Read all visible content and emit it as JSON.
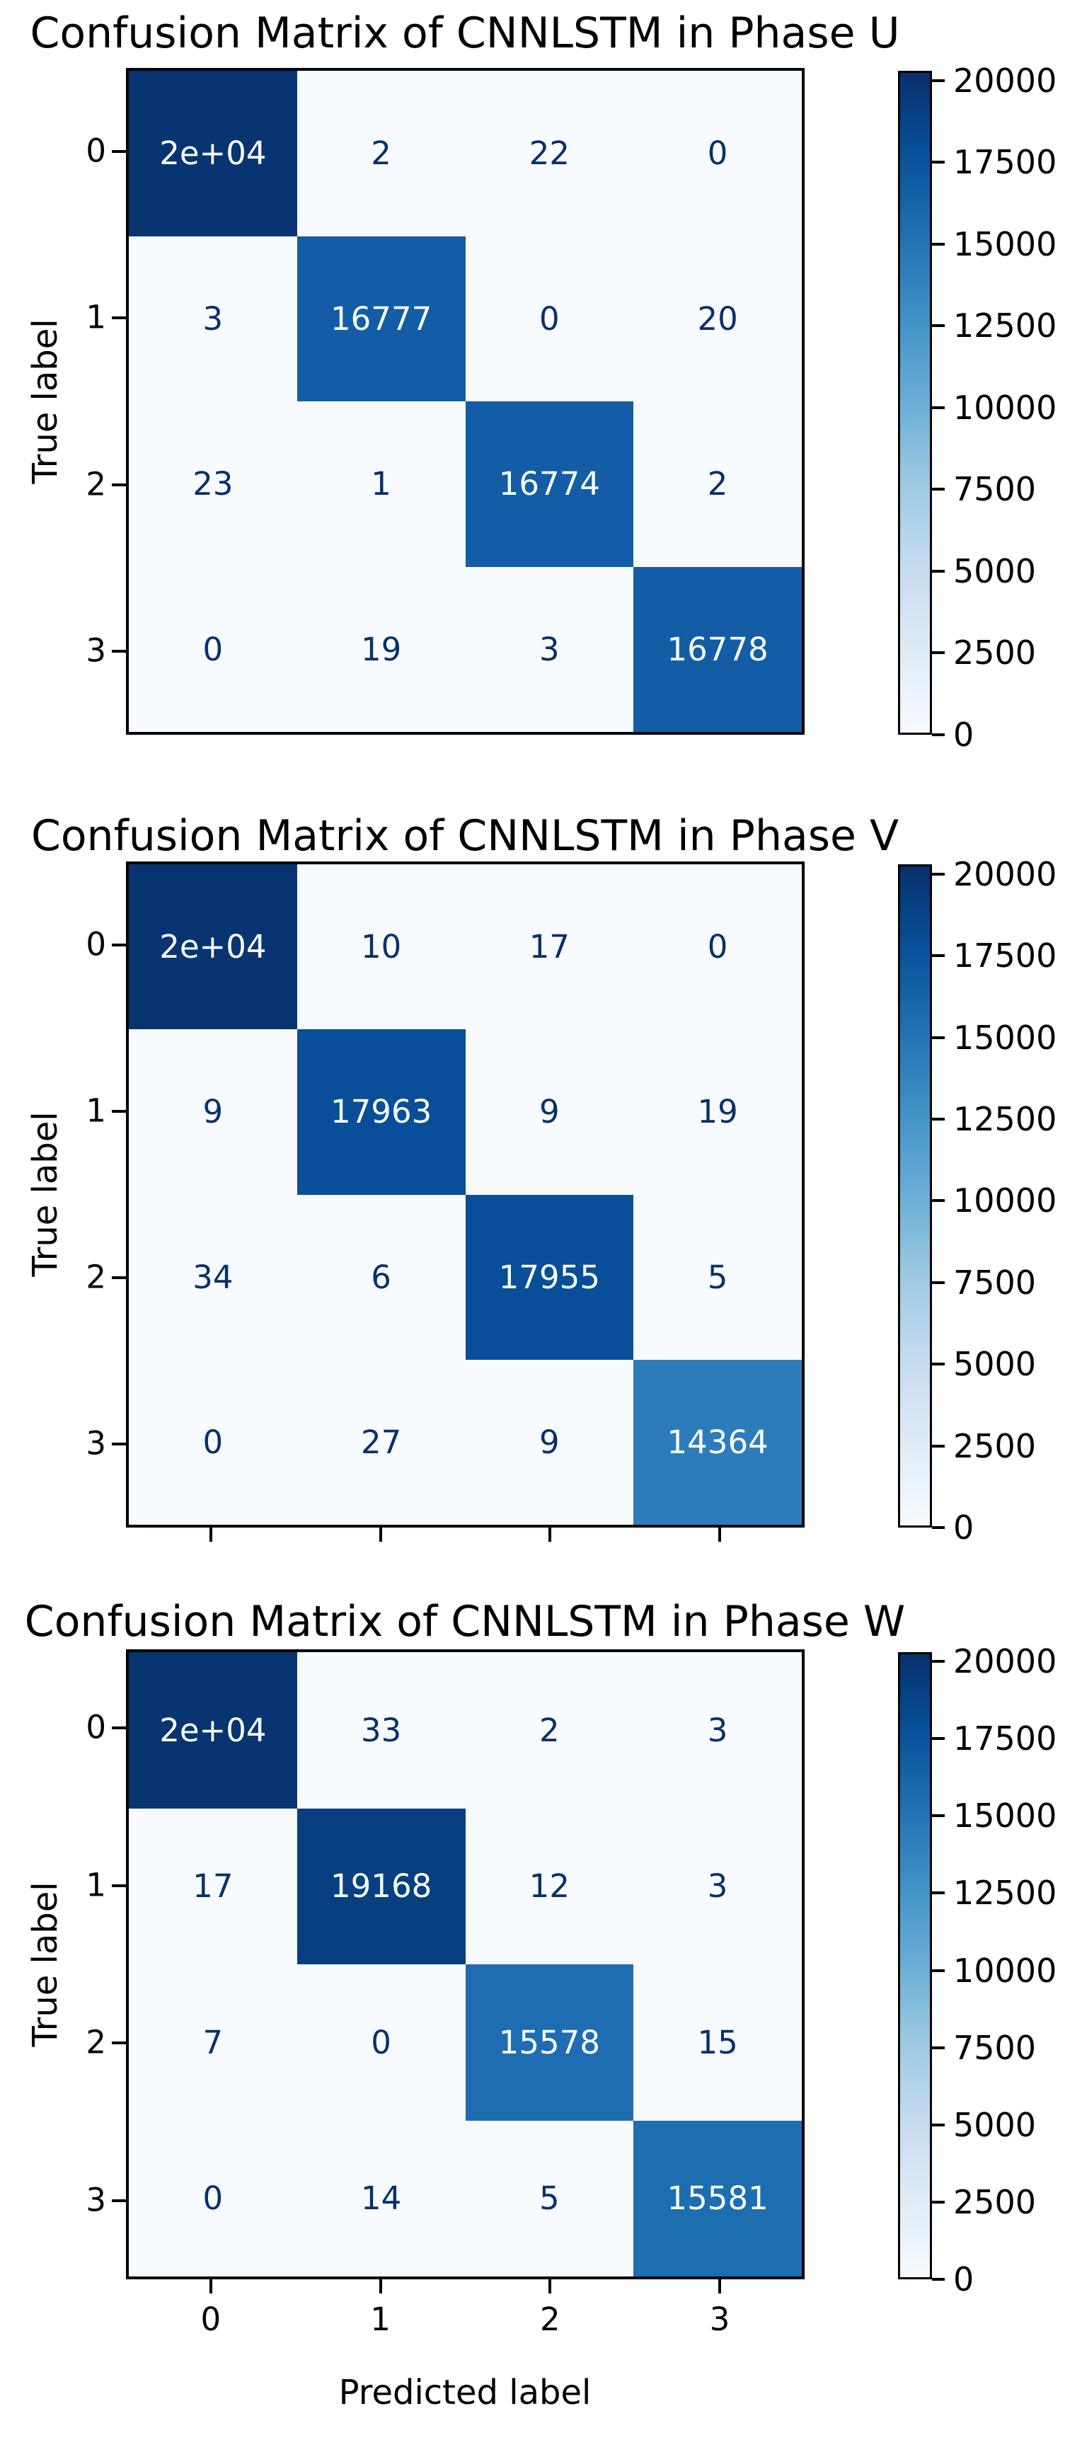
{
  "chart_data": [
    {
      "type": "heatmap",
      "title": "Confusion Matrix of CNNLSTM in Phase U",
      "ylabel": "True label",
      "row_labels": [
        "0",
        "1",
        "2",
        "3"
      ],
      "col_labels": [
        "0",
        "1",
        "2",
        "3"
      ],
      "cell_labels": [
        [
          "2e+04",
          "2",
          "22",
          "0"
        ],
        [
          "3",
          "16777",
          "0",
          "20"
        ],
        [
          "23",
          "1",
          "16774",
          "2"
        ],
        [
          "0",
          "19",
          "3",
          "16778"
        ]
      ],
      "values": [
        [
          20000,
          2,
          22,
          0
        ],
        [
          3,
          16777,
          0,
          20
        ],
        [
          23,
          1,
          16774,
          2
        ],
        [
          0,
          19,
          3,
          16778
        ]
      ]
    },
    {
      "type": "heatmap",
      "title": "Confusion Matrix of CNNLSTM in Phase V",
      "ylabel": "True label",
      "row_labels": [
        "0",
        "1",
        "2",
        "3"
      ],
      "col_labels": [
        "0",
        "1",
        "2",
        "3"
      ],
      "cell_labels": [
        [
          "2e+04",
          "10",
          "17",
          "0"
        ],
        [
          "9",
          "17963",
          "9",
          "19"
        ],
        [
          "34",
          "6",
          "17955",
          "5"
        ],
        [
          "0",
          "27",
          "9",
          "14364"
        ]
      ],
      "values": [
        [
          20000,
          10,
          17,
          0
        ],
        [
          9,
          17963,
          9,
          19
        ],
        [
          34,
          6,
          17955,
          5
        ],
        [
          0,
          27,
          9,
          14364
        ]
      ]
    },
    {
      "type": "heatmap",
      "title": "Confusion Matrix of CNNLSTM in Phase W",
      "ylabel": "True label",
      "xlabel": "Predicted label",
      "row_labels": [
        "0",
        "1",
        "2",
        "3"
      ],
      "col_labels": [
        "0",
        "1",
        "2",
        "3"
      ],
      "cell_labels": [
        [
          "2e+04",
          "33",
          "2",
          "3"
        ],
        [
          "17",
          "19168",
          "12",
          "3"
        ],
        [
          "7",
          "0",
          "15578",
          "15"
        ],
        [
          "0",
          "14",
          "5",
          "15581"
        ]
      ],
      "values": [
        [
          20000,
          33,
          2,
          3
        ],
        [
          17,
          19168,
          12,
          3
        ],
        [
          7,
          0,
          15578,
          15
        ],
        [
          0,
          14,
          5,
          15581
        ]
      ]
    }
  ],
  "colorbar": {
    "vmax": 20300,
    "tick_labels": [
      "0",
      "2500",
      "5000",
      "7500",
      "10000",
      "12500",
      "15000",
      "17500",
      "20000"
    ],
    "tick_values": [
      0,
      2500,
      5000,
      7500,
      10000,
      12500,
      15000,
      17500,
      20000
    ]
  },
  "colors": {
    "cmap_name": "Blues",
    "cmap_stops": [
      "#f7fbff",
      "#deebf7",
      "#c6dbef",
      "#9ecae1",
      "#6baed6",
      "#4292c6",
      "#2171b5",
      "#08519c",
      "#08306b"
    ],
    "dark_text": "#08306b",
    "light_text": "#f7fbff",
    "axis": "#000000",
    "background": "#ffffff"
  }
}
